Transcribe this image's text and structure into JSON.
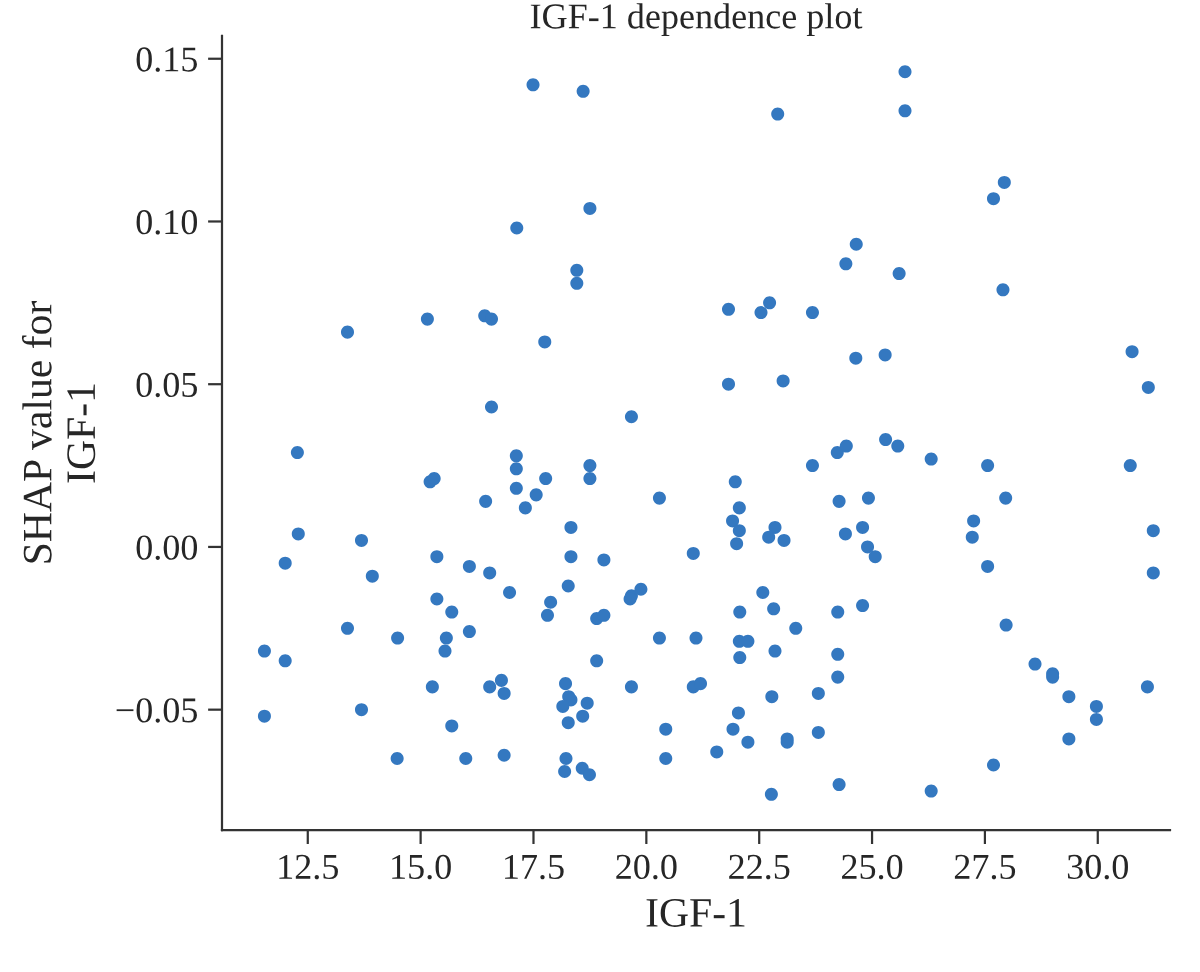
{
  "chart_data": {
    "type": "scatter",
    "title": "IGF-1 dependence plot",
    "xlabel": "IGF-1",
    "ylabel": "SHAP value for\nIGF-1",
    "xlim": [
      10.6,
      31.6
    ],
    "ylim": [
      -0.087,
      0.157
    ],
    "xticks": [
      {
        "value": 12.5,
        "label": "12.5"
      },
      {
        "value": 15,
        "label": "15.0"
      },
      {
        "value": 17.5,
        "label": "17.5"
      },
      {
        "value": 20,
        "label": "20.0"
      },
      {
        "value": 22.5,
        "label": "22.5"
      },
      {
        "value": 25,
        "label": "25.0"
      },
      {
        "value": 27.5,
        "label": "27.5"
      },
      {
        "value": 30,
        "label": "30.0"
      }
    ],
    "yticks": [
      {
        "value": -0.05,
        "label": "−0.05"
      },
      {
        "value": 0,
        "label": "0.00"
      },
      {
        "value": 0.05,
        "label": "0.05"
      },
      {
        "value": 0.1,
        "label": "0.10"
      },
      {
        "value": 0.15,
        "label": "0.15"
      }
    ],
    "grid": false,
    "marker": "circle",
    "series": [
      {
        "color": "#3478c0",
        "x": [
          17.49,
          18.6,
          18.75,
          17.13,
          18.46,
          18.46,
          13.38,
          15.15,
          16.42,
          16.57,
          17.75,
          16.57,
          19.67,
          25.73,
          25.73,
          22.91,
          27.93,
          27.69,
          24.65,
          24.42,
          25.6,
          27.9,
          21.82,
          22.54,
          22.73,
          23.68,
          24.64,
          25.29,
          30.76,
          31.12,
          21.82,
          23.03,
          12.27,
          17.12,
          17.12,
          17.12,
          18.75,
          18.75,
          15.21,
          15.3,
          17.77,
          17.56,
          17.32,
          16.44,
          20.29,
          12.29,
          13.69,
          12.0,
          13.93,
          15.36,
          16.08,
          16.53,
          18.33,
          18.33,
          19.06,
          21.04,
          18.27,
          16.97,
          15.36,
          17.88,
          17.81,
          15.69,
          19.67,
          19.88,
          19.64,
          18.9,
          19.06,
          13.38,
          14.49,
          15.57,
          16.08,
          15.54,
          11.54,
          12.0,
          20.29,
          21.1,
          18.9,
          16.79,
          16.53,
          16.85,
          15.26,
          18.21,
          18.28,
          18.33,
          18.15,
          18.69,
          19.67,
          21.04,
          11.54,
          13.69,
          15.69,
          18.27,
          18.59,
          20.43,
          14.48,
          16.0,
          16.85,
          18.22,
          20.43,
          18.19,
          18.58,
          18.74,
          25.3,
          25.57,
          24.23,
          24.43,
          23.68,
          26.31,
          27.56,
          30.72,
          21.97,
          22.06,
          21.91,
          22.06,
          22.0,
          22.85,
          22.71,
          23.05,
          24.27,
          24.92,
          27.96,
          27.25,
          27.22,
          31.23,
          24.79,
          24.41,
          24.9,
          25.07,
          27.56,
          31.23,
          22.58,
          22.07,
          22.82,
          24.24,
          24.79,
          23.31,
          27.97,
          22.06,
          22.25,
          22.07,
          22.85,
          24.24,
          24.24,
          28.61,
          29.0,
          29.0,
          29.36,
          29.97,
          29.97,
          31.1,
          21.2,
          23.81,
          22.78,
          22.04,
          21.92,
          22.25,
          23.12,
          23.12,
          23.81,
          21.56,
          29.36,
          27.69,
          24.27,
          22.77,
          26.31
        ],
        "values": [
          0.142,
          0.14,
          0.104,
          0.098,
          0.085,
          0.081,
          0.066,
          0.07,
          0.071,
          0.07,
          0.063,
          0.043,
          0.04,
          0.146,
          0.134,
          0.133,
          0.112,
          0.107,
          0.093,
          0.087,
          0.084,
          0.079,
          0.073,
          0.072,
          0.075,
          0.072,
          0.058,
          0.059,
          0.06,
          0.049,
          0.05,
          0.051,
          0.029,
          0.028,
          0.024,
          0.018,
          0.025,
          0.021,
          0.02,
          0.021,
          0.021,
          0.016,
          0.012,
          0.014,
          0.015,
          0.004,
          0.002,
          -0.005,
          -0.009,
          -0.003,
          -0.006,
          -0.008,
          0.006,
          -0.003,
          -0.004,
          -0.002,
          -0.012,
          -0.014,
          -0.016,
          -0.017,
          -0.021,
          -0.02,
          -0.015,
          -0.013,
          -0.016,
          -0.022,
          -0.021,
          -0.025,
          -0.028,
          -0.028,
          -0.026,
          -0.032,
          -0.032,
          -0.035,
          -0.028,
          -0.028,
          -0.035,
          -0.041,
          -0.043,
          -0.045,
          -0.043,
          -0.042,
          -0.046,
          -0.047,
          -0.049,
          -0.048,
          -0.043,
          -0.043,
          -0.052,
          -0.05,
          -0.055,
          -0.054,
          -0.052,
          -0.056,
          -0.065,
          -0.065,
          -0.064,
          -0.065,
          -0.065,
          -0.069,
          -0.068,
          -0.07,
          0.033,
          0.031,
          0.029,
          0.031,
          0.025,
          0.027,
          0.025,
          0.025,
          0.02,
          0.012,
          0.008,
          0.005,
          0.001,
          0.006,
          0.003,
          0.002,
          0.014,
          0.015,
          0.015,
          0.008,
          0.003,
          0.005,
          0.006,
          0.004,
          0.0,
          -0.003,
          -0.006,
          -0.008,
          -0.014,
          -0.02,
          -0.019,
          -0.02,
          -0.018,
          -0.025,
          -0.024,
          -0.029,
          -0.029,
          -0.034,
          -0.032,
          -0.033,
          -0.04,
          -0.036,
          -0.039,
          -0.04,
          -0.046,
          -0.049,
          -0.053,
          -0.043,
          -0.042,
          -0.045,
          -0.046,
          -0.051,
          -0.056,
          -0.06,
          -0.059,
          -0.06,
          -0.057,
          -0.063,
          -0.059,
          -0.067,
          -0.073,
          -0.076,
          -0.075
        ]
      }
    ]
  }
}
